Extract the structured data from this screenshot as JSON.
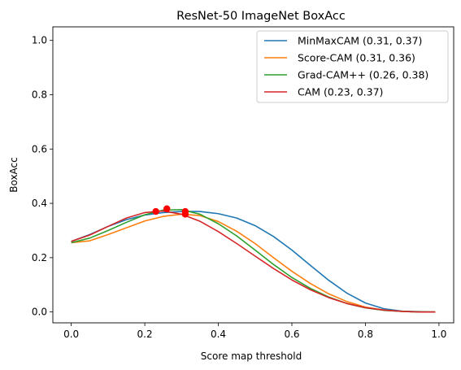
{
  "chart_data": {
    "type": "line",
    "title": "ResNet-50 ImageNet BoxAcc",
    "xlabel": "Score map threshold",
    "ylabel": "BoxAcc",
    "xlim": [
      -0.05,
      1.04
    ],
    "ylim": [
      -0.04,
      1.05
    ],
    "x_ticks": [
      "0.0",
      "0.2",
      "0.4",
      "0.6",
      "0.8",
      "1.0"
    ],
    "x_tick_values": [
      0.0,
      0.2,
      0.4,
      0.6,
      0.8,
      1.0
    ],
    "y_ticks": [
      "0.0",
      "0.2",
      "0.4",
      "0.6",
      "0.8",
      "1.0"
    ],
    "y_tick_values": [
      0.0,
      0.2,
      0.4,
      0.6,
      0.8,
      1.0
    ],
    "grid": false,
    "legend_position": "top-right",
    "series": [
      {
        "name": "MinMaxCAM (0.31, 0.37)",
        "color": "#1f77b4",
        "x": [
          0.0,
          0.05,
          0.1,
          0.15,
          0.2,
          0.25,
          0.3,
          0.35,
          0.4,
          0.45,
          0.5,
          0.55,
          0.6,
          0.65,
          0.7,
          0.75,
          0.8,
          0.85,
          0.9,
          0.95,
          0.99
        ],
        "y": [
          0.26,
          0.285,
          0.315,
          0.34,
          0.357,
          0.366,
          0.37,
          0.37,
          0.362,
          0.346,
          0.318,
          0.278,
          0.228,
          0.172,
          0.117,
          0.069,
          0.033,
          0.012,
          0.003,
          0.001,
          0.0
        ]
      },
      {
        "name": "Score-CAM (0.31, 0.36)",
        "color": "#ff7f0e",
        "x": [
          0.0,
          0.05,
          0.1,
          0.15,
          0.2,
          0.25,
          0.3,
          0.35,
          0.4,
          0.45,
          0.5,
          0.55,
          0.6,
          0.65,
          0.7,
          0.75,
          0.8,
          0.85,
          0.9,
          0.95,
          0.99
        ],
        "y": [
          0.255,
          0.262,
          0.285,
          0.31,
          0.335,
          0.352,
          0.36,
          0.355,
          0.333,
          0.297,
          0.252,
          0.2,
          0.15,
          0.105,
          0.067,
          0.038,
          0.018,
          0.007,
          0.002,
          0.0,
          0.0
        ]
      },
      {
        "name": "Grad-CAM++ (0.26, 0.38)",
        "color": "#2ca02c",
        "x": [
          0.0,
          0.05,
          0.1,
          0.15,
          0.2,
          0.25,
          0.3,
          0.35,
          0.4,
          0.45,
          0.5,
          0.55,
          0.6,
          0.65,
          0.7,
          0.75,
          0.8,
          0.85,
          0.9,
          0.95,
          0.99
        ],
        "y": [
          0.255,
          0.272,
          0.3,
          0.33,
          0.358,
          0.375,
          0.377,
          0.36,
          0.325,
          0.28,
          0.228,
          0.175,
          0.127,
          0.087,
          0.055,
          0.031,
          0.015,
          0.006,
          0.002,
          0.0,
          0.0
        ]
      },
      {
        "name": "CAM (0.23, 0.37)",
        "color": "#d62728",
        "x": [
          0.0,
          0.05,
          0.1,
          0.15,
          0.2,
          0.25,
          0.3,
          0.35,
          0.4,
          0.45,
          0.5,
          0.55,
          0.6,
          0.65,
          0.7,
          0.75,
          0.8,
          0.85,
          0.9,
          0.95,
          0.99
        ],
        "y": [
          0.26,
          0.283,
          0.315,
          0.346,
          0.366,
          0.372,
          0.36,
          0.334,
          0.296,
          0.252,
          0.206,
          0.16,
          0.118,
          0.082,
          0.053,
          0.031,
          0.016,
          0.007,
          0.002,
          0.0,
          0.0
        ]
      }
    ],
    "markers": {
      "color": "#ff0000",
      "points": [
        {
          "x": 0.31,
          "y": 0.37
        },
        {
          "x": 0.31,
          "y": 0.36
        },
        {
          "x": 0.26,
          "y": 0.38
        },
        {
          "x": 0.23,
          "y": 0.37
        }
      ]
    }
  }
}
